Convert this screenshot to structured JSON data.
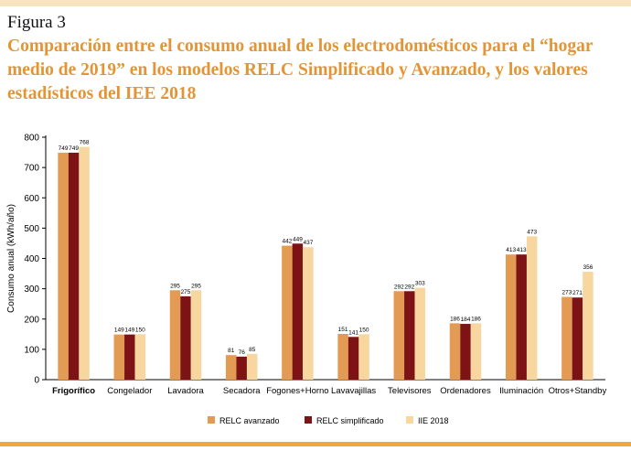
{
  "figure_label": "Figura 3",
  "title": "Comparación entre el consumo anual de los electrodomésticos para el “hogar medio de 2019” en los modelos RELC Simplificado y Avanzado, y los valores estadísticos del IEE 2018",
  "colors": {
    "relc_avanzado": "#e39a52",
    "relc_simplificado": "#7d1315",
    "iee_2018": "#f7d79f",
    "accent": "#e39535"
  },
  "chart_data": {
    "type": "bar",
    "title": "",
    "xlabel": "",
    "ylabel": "Consumo anual (kWh/año)",
    "ylim": [
      0,
      800
    ],
    "yticks": [
      0,
      100,
      200,
      300,
      400,
      500,
      600,
      700,
      800
    ],
    "grid": false,
    "legend_position": "bottom",
    "categories": [
      "Frigorífico",
      "Congelador",
      "Lavadora",
      "Secadora",
      "Fogones+Horno",
      "Lavavajillas",
      "Televisores",
      "Ordenadores",
      "Iluminación",
      "Otros+Standby"
    ],
    "series": [
      {
        "name": "RELC avanzado",
        "values": [
          749,
          149,
          295,
          81,
          442,
          151,
          292,
          186,
          413,
          273
        ]
      },
      {
        "name": "RELC simplificado",
        "values": [
          749,
          149,
          275,
          76,
          449,
          141,
          292,
          184,
          413,
          271
        ]
      },
      {
        "name": "IIE 2018",
        "values": [
          768,
          150,
          295,
          85,
          437,
          150,
          303,
          186,
          473,
          356
        ]
      }
    ]
  }
}
